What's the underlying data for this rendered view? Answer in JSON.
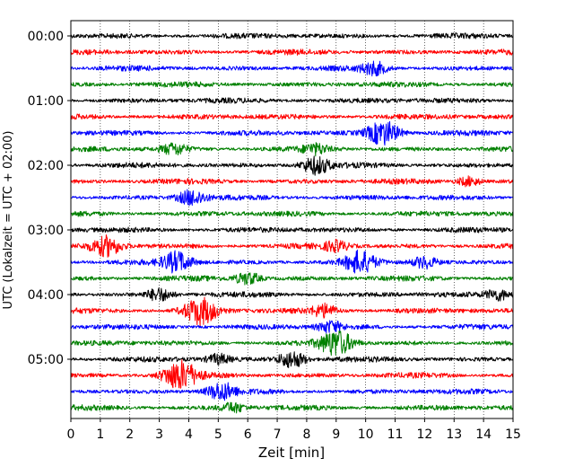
{
  "chart_data": {
    "type": "line",
    "title": "",
    "xlabel": "Zeit  [min]",
    "ylabel": "UTC (Lokalzeit = UTC + 02:00)",
    "xlim": [
      0,
      15
    ],
    "x_ticks": [
      0,
      1,
      2,
      3,
      4,
      5,
      6,
      7,
      8,
      9,
      10,
      11,
      12,
      13,
      14,
      15
    ],
    "y_tick_labels": [
      "00:00",
      "01:00",
      "02:00",
      "03:00",
      "04:00",
      "05:00"
    ],
    "trace_interval_minutes": 15,
    "trace_count": 24,
    "trace_colors": [
      "#000000",
      "#ff0000",
      "#0000ff",
      "#008000"
    ],
    "grid": "vertical-dotted",
    "legend": "none",
    "events": [
      {
        "trace": 2,
        "minute": 10.3,
        "amplitude": 1.6
      },
      {
        "trace": 6,
        "minute": 10.6,
        "amplitude": 3.2
      },
      {
        "trace": 7,
        "minute": 3.5,
        "amplitude": 1.4
      },
      {
        "trace": 7,
        "minute": 8.3,
        "amplitude": 1.2
      },
      {
        "trace": 8,
        "minute": 8.3,
        "amplitude": 2.2
      },
      {
        "trace": 9,
        "minute": 13.5,
        "amplitude": 1.2
      },
      {
        "trace": 10,
        "minute": 4.1,
        "amplitude": 2.0
      },
      {
        "trace": 13,
        "minute": 1.2,
        "amplitude": 2.4
      },
      {
        "trace": 13,
        "minute": 9.0,
        "amplitude": 1.3
      },
      {
        "trace": 14,
        "minute": 3.6,
        "amplitude": 2.6
      },
      {
        "trace": 14,
        "minute": 9.8,
        "amplitude": 2.6
      },
      {
        "trace": 14,
        "minute": 12.0,
        "amplitude": 1.6
      },
      {
        "trace": 15,
        "minute": 6.0,
        "amplitude": 1.6
      },
      {
        "trace": 16,
        "minute": 3.0,
        "amplitude": 1.6
      },
      {
        "trace": 16,
        "minute": 14.5,
        "amplitude": 1.4
      },
      {
        "trace": 17,
        "minute": 4.4,
        "amplitude": 3.4
      },
      {
        "trace": 17,
        "minute": 8.6,
        "amplitude": 1.6
      },
      {
        "trace": 18,
        "minute": 8.8,
        "amplitude": 1.4
      },
      {
        "trace": 19,
        "minute": 9.0,
        "amplitude": 3.2
      },
      {
        "trace": 20,
        "minute": 7.5,
        "amplitude": 2.2
      },
      {
        "trace": 20,
        "minute": 5.0,
        "amplitude": 1.2
      },
      {
        "trace": 21,
        "minute": 3.7,
        "amplitude": 3.6
      },
      {
        "trace": 22,
        "minute": 5.1,
        "amplitude": 2.2
      },
      {
        "trace": 23,
        "minute": 5.5,
        "amplitude": 1.2
      }
    ]
  }
}
